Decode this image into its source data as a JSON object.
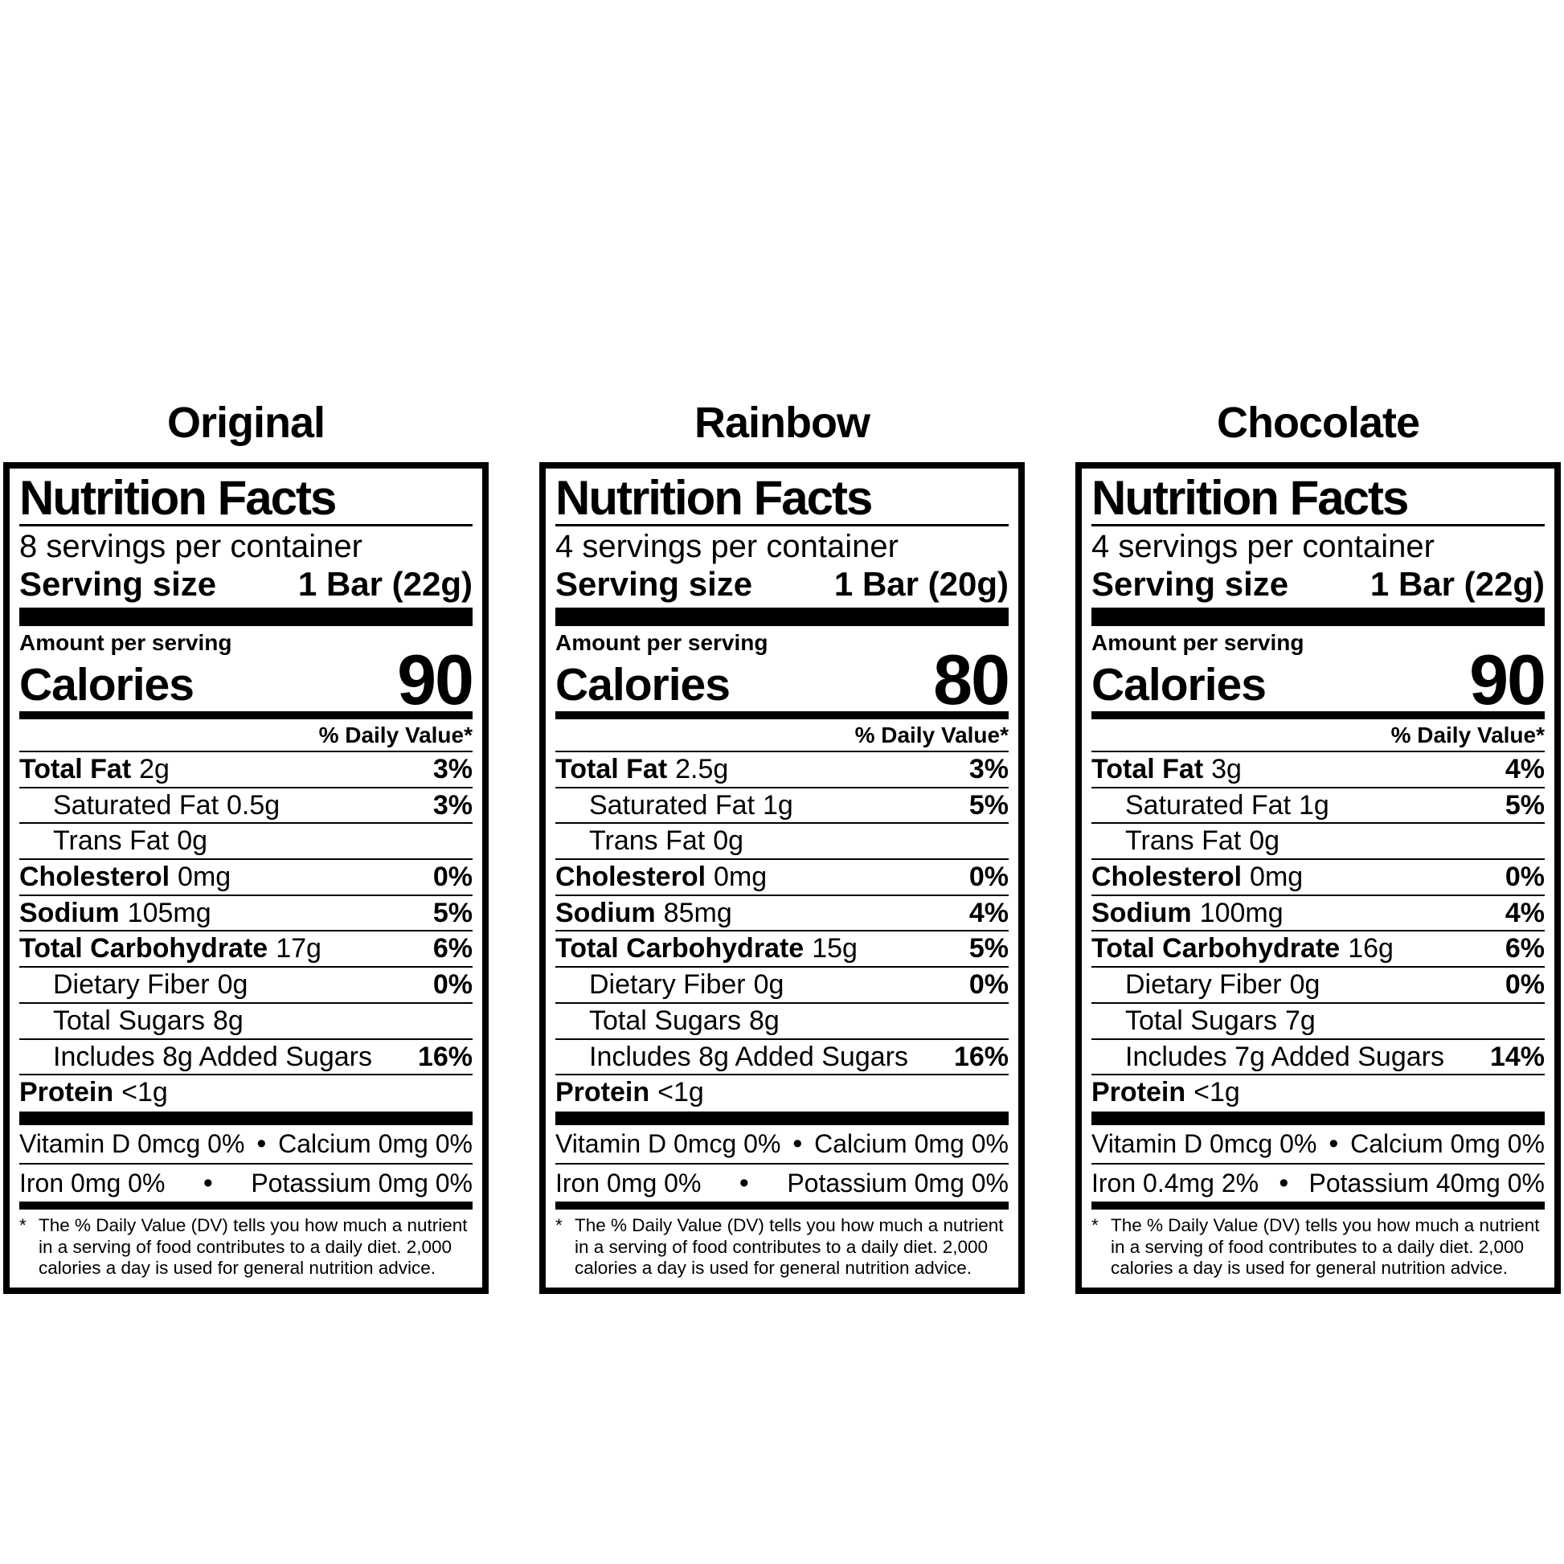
{
  "bullet": "•",
  "labels": [
    {
      "title": "Original",
      "header": "Nutrition Facts",
      "servings": "8 servings per container",
      "serving_size_label": "Serving size",
      "serving_size_value": "1 Bar (22g)",
      "amount_per_serving": "Amount per serving",
      "calories_label": "Calories",
      "calories_value": "90",
      "daily_value_header": "% Daily Value*",
      "rows": [
        {
          "name": "Total Fat",
          "amount": "2g",
          "pct": "3%"
        },
        {
          "name": "Saturated Fat",
          "amount": "0.5g",
          "pct": "3%"
        },
        {
          "name": "Trans Fat",
          "amount": "0g",
          "pct": ""
        },
        {
          "name": "Cholesterol",
          "amount": "0mg",
          "pct": "0%"
        },
        {
          "name": "Sodium",
          "amount": "105mg",
          "pct": "5%"
        },
        {
          "name": "Total Carbohydrate",
          "amount": "17g",
          "pct": "6%"
        },
        {
          "name": "Dietary Fiber",
          "amount": "0g",
          "pct": "0%"
        },
        {
          "name": "Total Sugars",
          "amount": "8g",
          "pct": ""
        },
        {
          "name": "Includes 8g Added Sugars",
          "amount": "",
          "pct": "16%"
        },
        {
          "name": "Protein",
          "amount": "<1g",
          "pct": ""
        }
      ],
      "micros": [
        {
          "left": "Vitamin D 0mcg 0%",
          "right": "Calcium 0mg 0%"
        },
        {
          "left": "Iron 0mg 0%",
          "right": "Potassium 0mg 0%"
        }
      ],
      "footnote_mark": "*",
      "footnote_text": "The % Daily Value (DV) tells you how much a nutrient in a serving of food contributes to a daily diet. 2,000 calories a day is used for general nutrition advice."
    },
    {
      "title": "Rainbow",
      "header": "Nutrition Facts",
      "servings": "4 servings per container",
      "serving_size_label": "Serving size",
      "serving_size_value": "1 Bar (20g)",
      "amount_per_serving": "Amount per serving",
      "calories_label": "Calories",
      "calories_value": "80",
      "daily_value_header": "% Daily Value*",
      "rows": [
        {
          "name": "Total Fat",
          "amount": "2.5g",
          "pct": "3%"
        },
        {
          "name": "Saturated Fat",
          "amount": "1g",
          "pct": "5%"
        },
        {
          "name": "Trans Fat",
          "amount": "0g",
          "pct": ""
        },
        {
          "name": "Cholesterol",
          "amount": "0mg",
          "pct": "0%"
        },
        {
          "name": "Sodium",
          "amount": "85mg",
          "pct": "4%"
        },
        {
          "name": "Total Carbohydrate",
          "amount": "15g",
          "pct": "5%"
        },
        {
          "name": "Dietary Fiber",
          "amount": "0g",
          "pct": "0%"
        },
        {
          "name": "Total Sugars",
          "amount": "8g",
          "pct": ""
        },
        {
          "name": "Includes 8g Added Sugars",
          "amount": "",
          "pct": "16%"
        },
        {
          "name": "Protein",
          "amount": "<1g",
          "pct": ""
        }
      ],
      "micros": [
        {
          "left": "Vitamin D 0mcg 0%",
          "right": "Calcium 0mg 0%"
        },
        {
          "left": "Iron 0mg 0%",
          "right": "Potassium 0mg 0%"
        }
      ],
      "footnote_mark": "*",
      "footnote_text": "The % Daily Value (DV) tells you how much a nutrient in a serving of food contributes to a daily diet. 2,000 calories a day is used for general nutrition advice."
    },
    {
      "title": "Chocolate",
      "header": "Nutrition Facts",
      "servings": "4 servings per container",
      "serving_size_label": "Serving size",
      "serving_size_value": "1 Bar (22g)",
      "amount_per_serving": "Amount per serving",
      "calories_label": "Calories",
      "calories_value": "90",
      "daily_value_header": "% Daily Value*",
      "rows": [
        {
          "name": "Total Fat",
          "amount": "3g",
          "pct": "4%"
        },
        {
          "name": "Saturated Fat",
          "amount": "1g",
          "pct": "5%"
        },
        {
          "name": "Trans Fat",
          "amount": "0g",
          "pct": ""
        },
        {
          "name": "Cholesterol",
          "amount": "0mg",
          "pct": "0%"
        },
        {
          "name": "Sodium",
          "amount": "100mg",
          "pct": "4%"
        },
        {
          "name": "Total Carbohydrate",
          "amount": "16g",
          "pct": "6%"
        },
        {
          "name": "Dietary Fiber",
          "amount": "0g",
          "pct": "0%"
        },
        {
          "name": "Total Sugars",
          "amount": "7g",
          "pct": ""
        },
        {
          "name": "Includes 7g Added Sugars",
          "amount": "",
          "pct": "14%"
        },
        {
          "name": "Protein",
          "amount": "<1g",
          "pct": ""
        }
      ],
      "micros": [
        {
          "left": "Vitamin D 0mcg 0%",
          "right": "Calcium 0mg 0%"
        },
        {
          "left": "Iron 0.4mg 2%",
          "right": "Potassium 40mg 0%"
        }
      ],
      "footnote_mark": "*",
      "footnote_text": "The % Daily Value (DV) tells you how much a nutrient in a serving of food contributes to a daily diet. 2,000 calories a day is used for general nutrition advice."
    }
  ]
}
